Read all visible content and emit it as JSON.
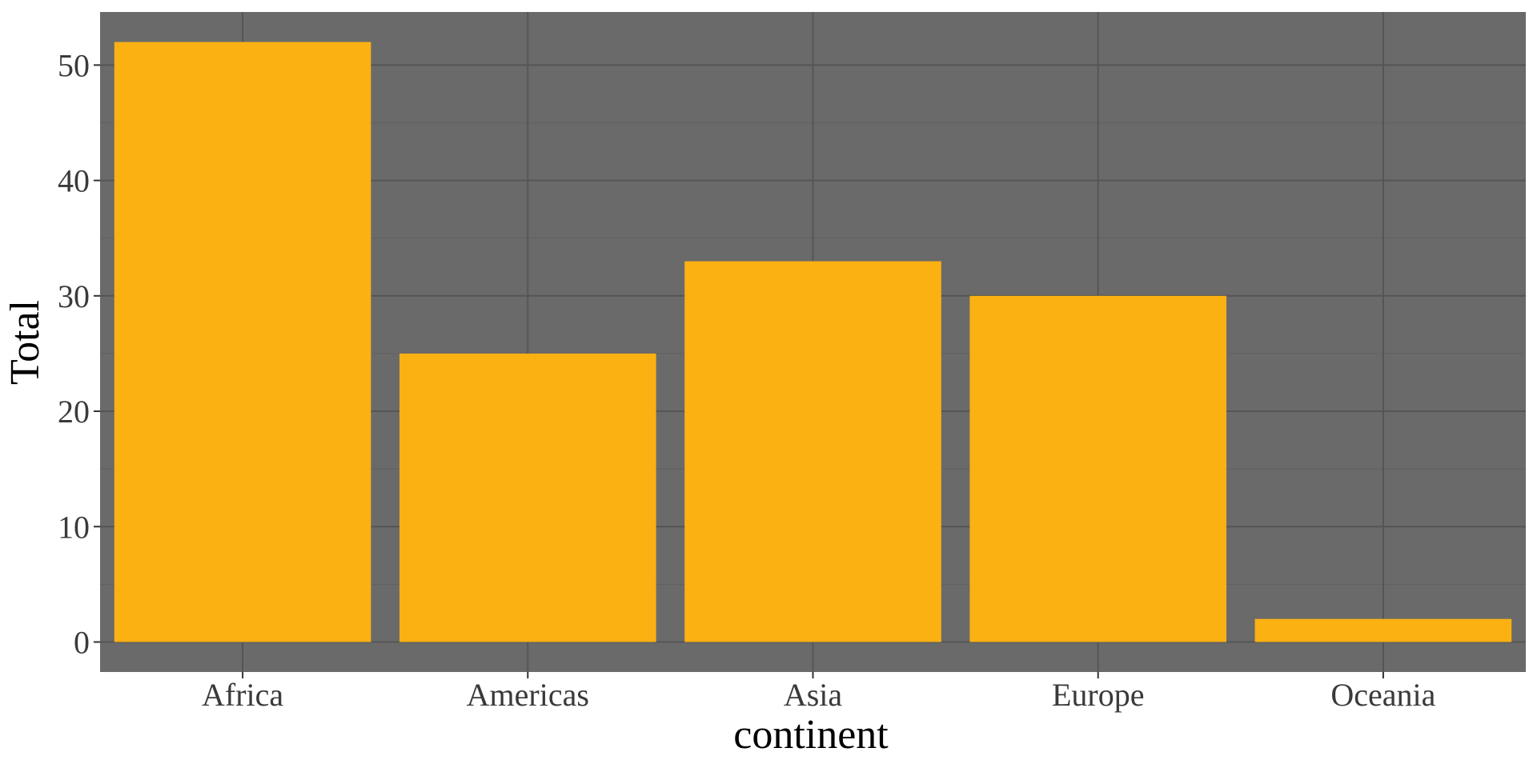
{
  "chart_data": {
    "type": "bar",
    "categories": [
      "Africa",
      "Americas",
      "Asia",
      "Europe",
      "Oceania"
    ],
    "values": [
      52,
      25,
      33,
      30,
      2
    ],
    "title": "",
    "xlabel": "continent",
    "ylabel": "Total",
    "ylim": [
      -2.6,
      54.6
    ],
    "yticks": [
      0,
      10,
      20,
      30,
      40,
      50
    ],
    "grid": true,
    "legend": "none",
    "colors": {
      "bar": "#FCB112",
      "panel": "#6A6A6A",
      "grid_major": "#555555",
      "grid_minor": "#616161",
      "tick_label": "#3A3A3A"
    }
  }
}
